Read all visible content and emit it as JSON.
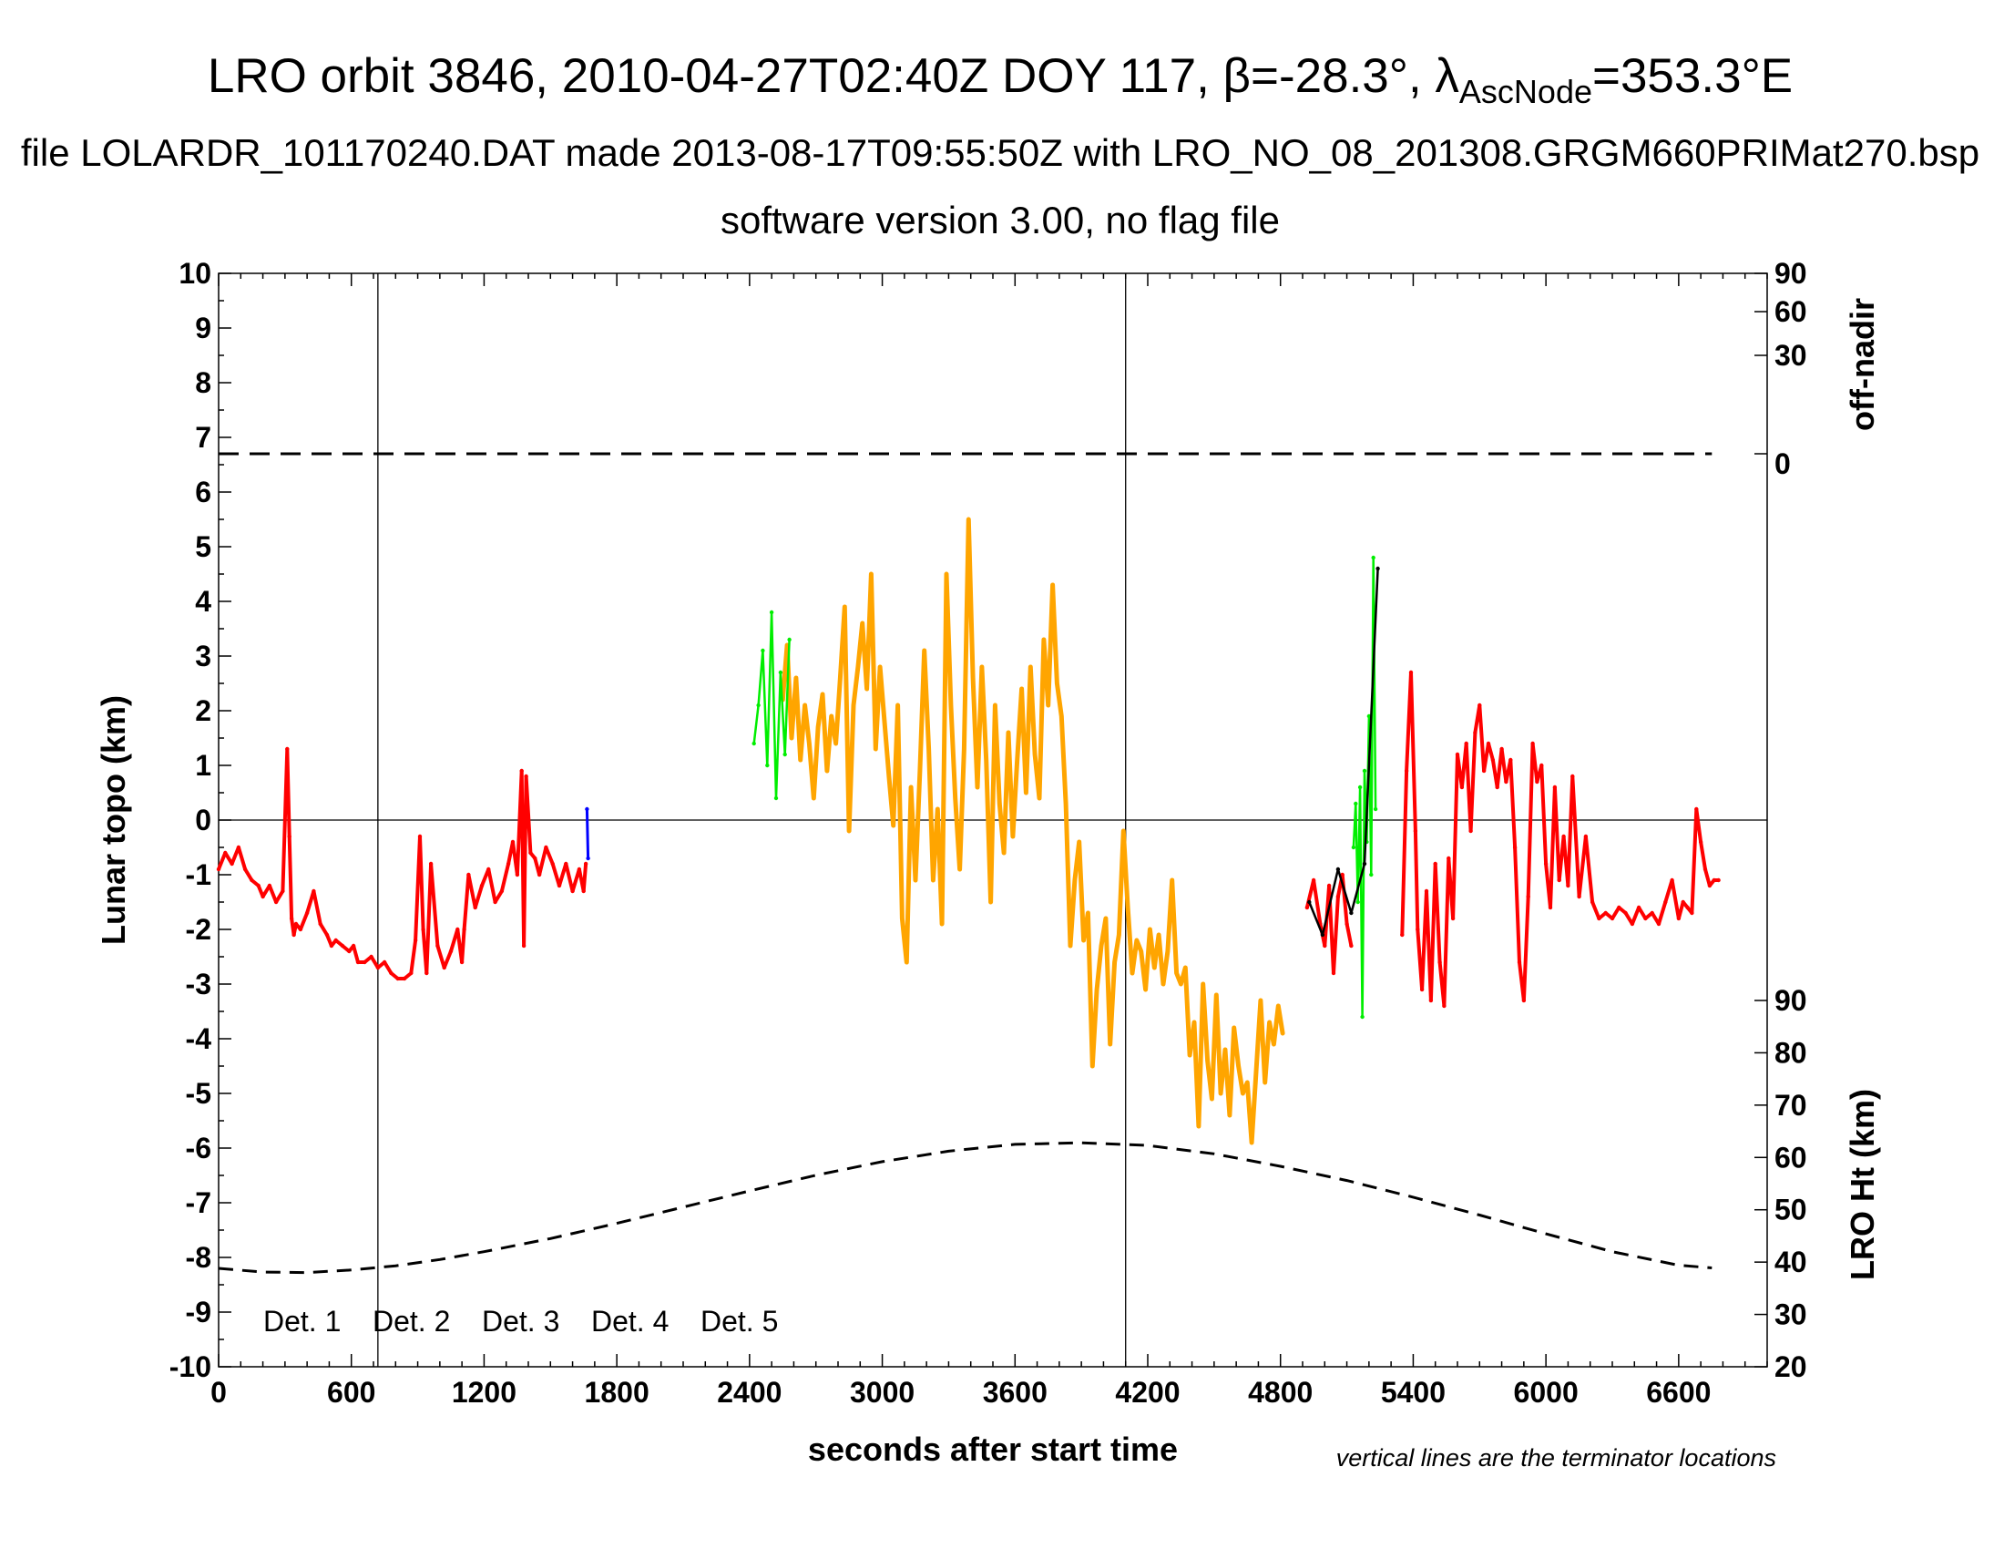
{
  "header": {
    "title_main": "LRO orbit 3846, 2010-04-27T02:40Z DOY 117, ",
    "title_beta_symbol": "β",
    "title_beta_value": "=-28.3°, ",
    "title_lambda_symbol": "λ",
    "title_lambda_subscript": "AscNode",
    "title_lambda_value": "=353.3°E",
    "subtitle": "file LOLARDR_101170240.DAT made 2013-08-17T09:55:50Z with LRO_NO_08_201308.GRGM660PRIMat270.bsp",
    "subtitle2": "software version 3.00, no flag file",
    "footnote": "vertical lines are the terminator locations"
  },
  "colors": {
    "det1": "#000000",
    "det2": "#0000ff",
    "det3": "#00ee00",
    "det4": "#ffa500",
    "det5": "#ff0000",
    "axes": "#000000"
  },
  "chart_data": {
    "type": "scatter",
    "xlabel": "seconds after start time",
    "ylabel_left": "Lunar topo (km)",
    "ylabel_right_top": "off-nadir",
    "ylabel_right_bottom": "LRO Ht (km)",
    "xlim": [
      0,
      7000
    ],
    "ylim": [
      -10,
      10
    ],
    "x_ticks": [
      0,
      600,
      1200,
      1800,
      2400,
      3000,
      3600,
      4200,
      4800,
      5400,
      6000,
      6600
    ],
    "y_ticks": [
      -10,
      -9,
      -8,
      -7,
      -6,
      -5,
      -4,
      -3,
      -2,
      -1,
      0,
      1,
      2,
      3,
      4,
      5,
      6,
      7,
      8,
      9,
      10
    ],
    "offnadir_ticks": [
      0,
      30,
      60,
      90
    ],
    "offnadir_tick_y_positions": [
      6.7,
      8.5,
      9.3,
      10
    ],
    "lro_ht_ticks": [
      20,
      30,
      40,
      50,
      60,
      70,
      80,
      90
    ],
    "lro_ht_range": [
      20,
      90
    ],
    "lro_ht_axis_ylim": [
      -10,
      -3.3
    ],
    "terminator_x": [
      720,
      4100
    ],
    "legend": [
      "Det. 1",
      "Det. 2",
      "Det. 3",
      "Det. 4",
      "Det. 5"
    ],
    "offnadir_line": {
      "x": [
        0,
        6750
      ],
      "value": 0
    },
    "lro_height_curve": {
      "x": [
        0,
        200,
        400,
        600,
        800,
        1000,
        1200,
        1500,
        1800,
        2100,
        2400,
        2700,
        3000,
        3300,
        3600,
        3900,
        4200,
        4500,
        4800,
        5100,
        5400,
        5700,
        6000,
        6300,
        6600,
        6750
      ],
      "y": [
        38.8,
        38.1,
        38.0,
        38.5,
        39.3,
        40.5,
        42.0,
        44.5,
        47.4,
        50.5,
        53.6,
        56.6,
        59.2,
        61.2,
        62.5,
        62.8,
        62.3,
        60.7,
        58.3,
        55.6,
        52.4,
        49.0,
        45.4,
        42.0,
        39.4,
        38.9
      ]
    },
    "series": [
      {
        "name": "Det. 5",
        "segments": [
          {
            "x": [
              0,
              30,
              60,
              90,
              120,
              150,
              180,
              200,
              230,
              260,
              290,
              310,
              320,
              330,
              340,
              350,
              370,
              400,
              430,
              460,
              490,
              510,
              530,
              560,
              590,
              610,
              630,
              660,
              690,
              720,
              750,
              780,
              810,
              840,
              870,
              890,
              910,
              925,
              940,
              960,
              990,
              1020,
              1050,
              1080,
              1100,
              1110,
              1130,
              1160,
              1190,
              1220,
              1250,
              1280,
              1310,
              1330,
              1350,
              1370,
              1380,
              1390,
              1410,
              1430,
              1450,
              1480,
              1510,
              1540,
              1570,
              1600,
              1630,
              1650,
              1660
            ],
            "y": [
              -0.9,
              -0.6,
              -0.8,
              -0.5,
              -0.9,
              -1.1,
              -1.2,
              -1.4,
              -1.2,
              -1.5,
              -1.3,
              1.3,
              -0.3,
              -1.8,
              -2.1,
              -1.9,
              -2.0,
              -1.7,
              -1.3,
              -1.9,
              -2.1,
              -2.3,
              -2.2,
              -2.3,
              -2.4,
              -2.3,
              -2.6,
              -2.6,
              -2.5,
              -2.7,
              -2.6,
              -2.8,
              -2.9,
              -2.9,
              -2.8,
              -2.2,
              -0.3,
              -2.0,
              -2.8,
              -0.8,
              -2.3,
              -2.7,
              -2.4,
              -2.0,
              -2.6,
              -2.0,
              -1.0,
              -1.6,
              -1.2,
              -0.9,
              -1.5,
              -1.3,
              -0.8,
              -0.4,
              -1.0,
              0.9,
              -2.3,
              0.8,
              -0.6,
              -0.7,
              -1.0,
              -0.5,
              -0.8,
              -1.2,
              -0.8,
              -1.3,
              -0.9,
              -1.3,
              -0.8
            ]
          },
          {
            "x": [
              4920,
              4950,
              4980,
              5000,
              5020,
              5040,
              5060,
              5080,
              5100,
              5120
            ],
            "y": [
              -1.6,
              -1.1,
              -1.9,
              -2.3,
              -1.2,
              -2.8,
              -1.4,
              -1.0,
              -1.9,
              -2.3
            ]
          },
          {
            "x": [
              5350,
              5370,
              5390,
              5410,
              5420,
              5440,
              5460,
              5480,
              5500,
              5520,
              5540,
              5560,
              5580,
              5600,
              5620,
              5640,
              5660,
              5680,
              5700,
              5720,
              5740,
              5760,
              5780,
              5800,
              5820,
              5840,
              5860,
              5880,
              5900,
              5920,
              5940,
              5960,
              5980,
              6000,
              6020,
              6040,
              6060,
              6080,
              6100,
              6120,
              6150,
              6180,
              6210,
              6240,
              6270,
              6300,
              6330,
              6360,
              6390,
              6420,
              6450,
              6480,
              6510,
              6540,
              6570,
              6600,
              6620,
              6640,
              6660,
              6680,
              6700,
              6720,
              6740,
              6760,
              6780
            ],
            "y": [
              -2.1,
              0.9,
              2.7,
              -0.2,
              -2.0,
              -3.1,
              -1.3,
              -3.3,
              -0.8,
              -2.6,
              -3.4,
              -0.7,
              -1.8,
              1.2,
              0.6,
              1.4,
              -0.2,
              1.6,
              2.1,
              0.9,
              1.4,
              1.1,
              0.6,
              1.3,
              0.7,
              1.1,
              -0.5,
              -2.6,
              -3.3,
              -1.4,
              1.4,
              0.7,
              1.0,
              -0.8,
              -1.6,
              0.6,
              -1.1,
              -0.3,
              -1.2,
              0.8,
              -1.4,
              -0.3,
              -1.5,
              -1.8,
              -1.7,
              -1.8,
              -1.6,
              -1.7,
              -1.9,
              -1.6,
              -1.8,
              -1.7,
              -1.9,
              -1.5,
              -1.1,
              -1.8,
              -1.5,
              -1.6,
              -1.7,
              0.2,
              -0.4,
              -0.9,
              -1.2,
              -1.1,
              -1.1
            ]
          }
        ]
      },
      {
        "name": "Det. 4",
        "segments": [
          {
            "x": [
              2550,
              2570,
              2590,
              2610,
              2630,
              2650,
              2670,
              2690,
              2710,
              2730,
              2750,
              2770,
              2790,
              2810,
              2830,
              2850,
              2870,
              2890,
              2910,
              2930,
              2950,
              2970,
              2990,
              3010,
              3030,
              3050,
              3070,
              3090,
              3110,
              3130,
              3150,
              3170,
              3190,
              3210,
              3230,
              3250,
              3270,
              3290,
              3310,
              3330,
              3350,
              3370,
              3390,
              3410,
              3430,
              3450,
              3470,
              3490,
              3510,
              3530,
              3550,
              3570,
              3590,
              3610,
              3630,
              3650,
              3670,
              3690,
              3710,
              3730,
              3750,
              3770,
              3790,
              3810,
              3830,
              3850,
              3870,
              3890,
              3910,
              3930,
              3950,
              3970,
              3990,
              4010,
              4030,
              4050,
              4070,
              4090,
              4110,
              4130,
              4150,
              4170,
              4190,
              4210,
              4230,
              4250,
              4270,
              4290,
              4310,
              4330,
              4350,
              4370,
              4390,
              4410,
              4430,
              4450,
              4470,
              4490,
              4510,
              4530,
              4550,
              4570,
              4590,
              4610,
              4630,
              4650,
              4670,
              4690,
              4710,
              4730,
              4750,
              4770,
              4790,
              4810
            ],
            "y": [
              2.2,
              3.2,
              1.5,
              2.6,
              1.1,
              2.1,
              1.4,
              0.4,
              1.7,
              2.3,
              0.9,
              1.9,
              1.4,
              2.6,
              3.9,
              -0.2,
              2.1,
              2.8,
              3.6,
              2.4,
              4.5,
              1.3,
              2.8,
              1.8,
              0.8,
              -0.1,
              2.1,
              -1.8,
              -2.6,
              0.6,
              -1.1,
              0.9,
              3.1,
              1.3,
              -1.1,
              0.2,
              -1.9,
              4.5,
              2.1,
              0.4,
              -0.9,
              1.3,
              5.5,
              2.6,
              0.6,
              2.8,
              1.1,
              -1.5,
              2.1,
              0.3,
              -0.6,
              1.6,
              -0.3,
              1.1,
              2.4,
              0.5,
              2.8,
              1.2,
              0.4,
              3.3,
              2.1,
              4.3,
              2.5,
              1.9,
              0.3,
              -2.3,
              -1.1,
              -0.4,
              -2.2,
              -1.7,
              -4.5,
              -3.1,
              -2.3,
              -1.8,
              -4.1,
              -2.6,
              -2.1,
              -0.2,
              -1.6,
              -2.8,
              -2.2,
              -2.4,
              -3.1,
              -2.0,
              -2.7,
              -2.1,
              -3.0,
              -2.4,
              -1.1,
              -2.8,
              -3.0,
              -2.7,
              -4.3,
              -3.7,
              -5.6,
              -3.0,
              -4.4,
              -5.1,
              -3.2,
              -5.0,
              -4.2,
              -5.4,
              -3.8,
              -4.5,
              -5.0,
              -4.8,
              -5.9,
              -4.6,
              -3.3,
              -4.8,
              -3.7,
              -4.1,
              -3.4,
              -3.9
            ]
          }
        ]
      },
      {
        "name": "Det. 3",
        "segments": [
          {
            "x": [
              2420,
              2440,
              2460,
              2480,
              2500,
              2520,
              2540,
              2560,
              2580
            ],
            "y": [
              1.4,
              2.1,
              3.1,
              1.0,
              3.8,
              0.4,
              2.7,
              1.2,
              3.3
            ]
          },
          {
            "x": [
              5130,
              5140,
              5150,
              5160,
              5170,
              5180,
              5190,
              5200,
              5210,
              5220,
              5230
            ],
            "y": [
              -0.5,
              0.3,
              -1.5,
              0.6,
              -3.6,
              0.9,
              -0.4,
              1.9,
              -1.0,
              4.8,
              0.2
            ]
          }
        ]
      },
      {
        "name": "Det. 1",
        "segments": [
          {
            "x": [
              4930,
              4990,
              5060,
              5120,
              5180,
              5240
            ],
            "y": [
              -1.5,
              -2.1,
              -0.9,
              -1.7,
              -0.8,
              4.6
            ]
          }
        ]
      },
      {
        "name": "Det. 2",
        "segments": [
          {
            "x": [
              1665,
              1670
            ],
            "y": [
              0.2,
              -0.7
            ]
          }
        ]
      }
    ]
  }
}
